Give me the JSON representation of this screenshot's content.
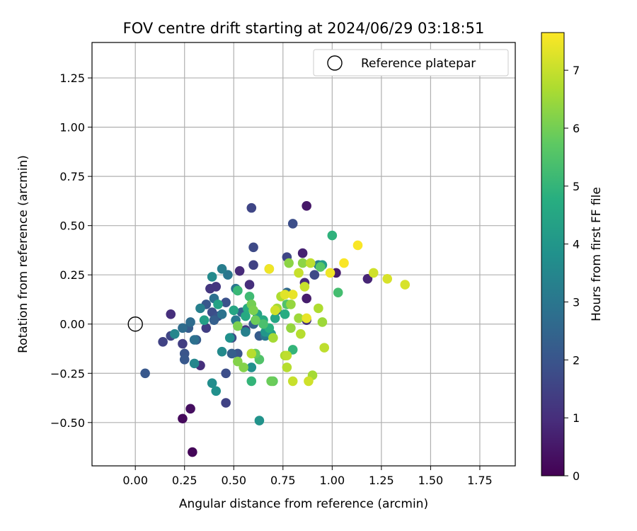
{
  "chart_data": {
    "type": "scatter",
    "title": "FOV centre drift starting at 2024/06/29 03:18:51",
    "xlabel": "Angular distance from reference (arcmin)",
    "ylabel": "Rotation from reference (arcmin)",
    "xlim": [
      -0.22,
      1.93
    ],
    "ylim": [
      -0.72,
      1.43
    ],
    "xticks": [
      "0.00",
      "0.25",
      "0.50",
      "0.75",
      "1.00",
      "1.25",
      "1.50",
      "1.75"
    ],
    "xtick_values": [
      0,
      0.25,
      0.5,
      0.75,
      1.0,
      1.25,
      1.5,
      1.75
    ],
    "yticks": [
      "−0.50",
      "−0.25",
      "0.00",
      "0.25",
      "0.50",
      "0.75",
      "1.00",
      "1.25"
    ],
    "ytick_values": [
      -0.5,
      -0.25,
      0,
      0.25,
      0.5,
      0.75,
      1.0,
      1.25
    ],
    "grid": true,
    "legend": {
      "position": "top-right",
      "entries": [
        {
          "label": "Reference platepar",
          "marker": "open-circle"
        }
      ]
    },
    "reference_point": {
      "x": 0,
      "y": 0,
      "label": "Reference platepar"
    },
    "colorbar": {
      "label": "Hours from first FF file",
      "range": [
        0,
        7.65
      ],
      "ticks": [
        "0",
        "1",
        "2",
        "3",
        "4",
        "5",
        "6",
        "7"
      ],
      "tick_values": [
        0,
        1,
        2,
        3,
        4,
        5,
        6,
        7
      ],
      "colormap": "viridis"
    },
    "points": [
      {
        "x": 0.29,
        "y": -0.65,
        "h": 0.1
      },
      {
        "x": 0.24,
        "y": -0.48,
        "h": 0.2
      },
      {
        "x": 0.28,
        "y": -0.43,
        "h": 0.3
      },
      {
        "x": 0.87,
        "y": 0.6,
        "h": 0.5
      },
      {
        "x": 0.85,
        "y": 0.36,
        "h": 0.7
      },
      {
        "x": 1.02,
        "y": 0.26,
        "h": 0.6
      },
      {
        "x": 1.18,
        "y": 0.23,
        "h": 0.8
      },
      {
        "x": 0.86,
        "y": 0.21,
        "h": 0.9
      },
      {
        "x": 0.87,
        "y": 0.13,
        "h": 0.6
      },
      {
        "x": 0.18,
        "y": 0.05,
        "h": 1.0
      },
      {
        "x": 0.33,
        "y": -0.21,
        "h": 1.0
      },
      {
        "x": 0.53,
        "y": 0.27,
        "h": 0.9
      },
      {
        "x": 0.58,
        "y": 0.2,
        "h": 1.0
      },
      {
        "x": 0.87,
        "y": 0.02,
        "h": 1.1
      },
      {
        "x": 0.38,
        "y": 0.18,
        "h": 1.2
      },
      {
        "x": 0.41,
        "y": 0.19,
        "h": 1.2
      },
      {
        "x": 0.56,
        "y": -0.03,
        "h": 1.3
      },
      {
        "x": 0.14,
        "y": -0.09,
        "h": 1.5
      },
      {
        "x": 0.18,
        "y": -0.06,
        "h": 1.6
      },
      {
        "x": 0.24,
        "y": -0.1,
        "h": 1.4
      },
      {
        "x": 0.36,
        "y": -0.02,
        "h": 1.4
      },
      {
        "x": 0.46,
        "y": -0.4,
        "h": 1.5
      },
      {
        "x": 0.59,
        "y": 0.59,
        "h": 1.6
      },
      {
        "x": 0.6,
        "y": 0.39,
        "h": 1.7
      },
      {
        "x": 0.6,
        "y": 0.3,
        "h": 1.5
      },
      {
        "x": 0.77,
        "y": 0.34,
        "h": 1.6
      },
      {
        "x": 0.8,
        "y": 0.51,
        "h": 1.8
      },
      {
        "x": 0.91,
        "y": 0.25,
        "h": 1.7
      },
      {
        "x": 0.39,
        "y": 0.06,
        "h": 1.8
      },
      {
        "x": 0.42,
        "y": 0.04,
        "h": 1.9
      },
      {
        "x": 0.46,
        "y": 0.11,
        "h": 1.9
      },
      {
        "x": 0.46,
        "y": -0.25,
        "h": 1.8
      },
      {
        "x": 0.49,
        "y": -0.07,
        "h": 1.7
      },
      {
        "x": 0.52,
        "y": -0.15,
        "h": 2.0
      },
      {
        "x": 0.25,
        "y": -0.15,
        "h": 2.0
      },
      {
        "x": 0.25,
        "y": -0.18,
        "h": 2.1
      },
      {
        "x": 0.05,
        "y": -0.25,
        "h": 2.1
      },
      {
        "x": 0.27,
        "y": -0.02,
        "h": 2.2
      },
      {
        "x": 0.31,
        "y": -0.08,
        "h": 2.2
      },
      {
        "x": 0.36,
        "y": 0.1,
        "h": 2.1
      },
      {
        "x": 0.4,
        "y": 0.02,
        "h": 2.3
      },
      {
        "x": 0.49,
        "y": -0.15,
        "h": 2.3
      },
      {
        "x": 0.54,
        "y": 0.06,
        "h": 2.4
      },
      {
        "x": 0.6,
        "y": 0.0,
        "h": 2.4
      },
      {
        "x": 0.63,
        "y": -0.06,
        "h": 2.2
      },
      {
        "x": 0.72,
        "y": 0.07,
        "h": 2.5
      },
      {
        "x": 0.77,
        "y": 0.16,
        "h": 2.6
      },
      {
        "x": 0.24,
        "y": -0.02,
        "h": 2.7
      },
      {
        "x": 0.28,
        "y": 0.01,
        "h": 2.7
      },
      {
        "x": 0.3,
        "y": -0.08,
        "h": 2.8
      },
      {
        "x": 0.4,
        "y": 0.13,
        "h": 2.8
      },
      {
        "x": 0.44,
        "y": 0.05,
        "h": 2.9
      },
      {
        "x": 0.47,
        "y": 0.25,
        "h": 3.0
      },
      {
        "x": 0.51,
        "y": 0.18,
        "h": 3.0
      },
      {
        "x": 0.44,
        "y": 0.28,
        "h": 3.2
      },
      {
        "x": 0.33,
        "y": 0.08,
        "h": 3.3
      },
      {
        "x": 0.51,
        "y": 0.02,
        "h": 3.1
      },
      {
        "x": 0.56,
        "y": -0.04,
        "h": 3.3
      },
      {
        "x": 0.66,
        "y": -0.06,
        "h": 3.1
      },
      {
        "x": 0.93,
        "y": 0.3,
        "h": 3.2
      },
      {
        "x": 0.2,
        "y": -0.05,
        "h": 3.5
      },
      {
        "x": 0.3,
        "y": -0.2,
        "h": 3.5
      },
      {
        "x": 0.39,
        "y": 0.24,
        "h": 3.6
      },
      {
        "x": 0.39,
        "y": -0.3,
        "h": 3.7
      },
      {
        "x": 0.41,
        "y": -0.34,
        "h": 3.8
      },
      {
        "x": 0.44,
        "y": -0.14,
        "h": 3.6
      },
      {
        "x": 0.48,
        "y": -0.07,
        "h": 3.8
      },
      {
        "x": 0.52,
        "y": 0.17,
        "h": 3.9
      },
      {
        "x": 0.63,
        "y": -0.49,
        "h": 3.9
      },
      {
        "x": 0.59,
        "y": -0.22,
        "h": 3.8
      },
      {
        "x": 0.66,
        "y": -0.04,
        "h": 4.0
      },
      {
        "x": 0.69,
        "y": -0.05,
        "h": 4.1
      },
      {
        "x": 0.95,
        "y": 0.3,
        "h": 4.2
      },
      {
        "x": 0.35,
        "y": 0.02,
        "h": 4.3
      },
      {
        "x": 0.42,
        "y": 0.1,
        "h": 4.4
      },
      {
        "x": 0.5,
        "y": 0.07,
        "h": 4.5
      },
      {
        "x": 0.56,
        "y": 0.04,
        "h": 4.6
      },
      {
        "x": 0.57,
        "y": 0.08,
        "h": 4.7
      },
      {
        "x": 0.62,
        "y": 0.05,
        "h": 4.4
      },
      {
        "x": 0.65,
        "y": 0.02,
        "h": 4.6
      },
      {
        "x": 0.68,
        "y": -0.02,
        "h": 4.8
      },
      {
        "x": 0.71,
        "y": 0.03,
        "h": 4.5
      },
      {
        "x": 0.76,
        "y": 0.05,
        "h": 4.7
      },
      {
        "x": 1.0,
        "y": 0.45,
        "h": 4.9
      },
      {
        "x": 0.8,
        "y": -0.13,
        "h": 5.0
      },
      {
        "x": 0.52,
        "y": 0.17,
        "h": 5.1
      },
      {
        "x": 0.58,
        "y": 0.14,
        "h": 5.2
      },
      {
        "x": 0.59,
        "y": -0.29,
        "h": 5.0
      },
      {
        "x": 1.03,
        "y": 0.16,
        "h": 5.3
      },
      {
        "x": 0.65,
        "y": 0.0,
        "h": 5.4
      },
      {
        "x": 0.63,
        "y": -0.18,
        "h": 5.5
      },
      {
        "x": 0.77,
        "y": 0.1,
        "h": 5.5
      },
      {
        "x": 0.94,
        "y": 0.29,
        "h": 5.6
      },
      {
        "x": 0.68,
        "y": 0.28,
        "h": 5.7
      },
      {
        "x": 0.7,
        "y": -0.29,
        "h": 5.8
      },
      {
        "x": 0.69,
        "y": -0.29,
        "h": 5.9
      },
      {
        "x": 0.61,
        "y": -0.15,
        "h": 5.8
      },
      {
        "x": 0.61,
        "y": 0.02,
        "h": 5.9
      },
      {
        "x": 0.59,
        "y": 0.1,
        "h": 6.0
      },
      {
        "x": 0.6,
        "y": 0.07,
        "h": 6.1
      },
      {
        "x": 0.55,
        "y": -0.22,
        "h": 6.2
      },
      {
        "x": 0.52,
        "y": -0.19,
        "h": 6.2
      },
      {
        "x": 0.52,
        "y": -0.01,
        "h": 6.1
      },
      {
        "x": 0.78,
        "y": 0.31,
        "h": 6.3
      },
      {
        "x": 0.79,
        "y": 0.1,
        "h": 6.4
      },
      {
        "x": 0.79,
        "y": -0.02,
        "h": 6.4
      },
      {
        "x": 0.83,
        "y": 0.03,
        "h": 6.5
      },
      {
        "x": 0.85,
        "y": 0.31,
        "h": 6.3
      },
      {
        "x": 0.72,
        "y": 0.08,
        "h": 6.6
      },
      {
        "x": 0.7,
        "y": -0.07,
        "h": 6.6
      },
      {
        "x": 0.74,
        "y": 0.14,
        "h": 6.7
      },
      {
        "x": 0.76,
        "y": -0.16,
        "h": 6.7
      },
      {
        "x": 0.77,
        "y": -0.22,
        "h": 6.8
      },
      {
        "x": 0.84,
        "y": -0.05,
        "h": 6.8
      },
      {
        "x": 0.89,
        "y": 0.31,
        "h": 6.9
      },
      {
        "x": 0.9,
        "y": -0.26,
        "h": 6.6
      },
      {
        "x": 0.93,
        "y": 0.08,
        "h": 6.7
      },
      {
        "x": 0.95,
        "y": 0.01,
        "h": 6.5
      },
      {
        "x": 0.96,
        "y": -0.12,
        "h": 6.9
      },
      {
        "x": 0.59,
        "y": -0.15,
        "h": 6.8
      },
      {
        "x": 0.77,
        "y": -0.16,
        "h": 6.9
      },
      {
        "x": 0.8,
        "y": -0.29,
        "h": 7.0
      },
      {
        "x": 0.83,
        "y": 0.26,
        "h": 7.0
      },
      {
        "x": 0.86,
        "y": 0.19,
        "h": 7.0
      },
      {
        "x": 0.88,
        "y": -0.29,
        "h": 7.1
      },
      {
        "x": 1.21,
        "y": 0.26,
        "h": 7.1
      },
      {
        "x": 1.28,
        "y": 0.23,
        "h": 7.2
      },
      {
        "x": 1.37,
        "y": 0.2,
        "h": 7.2
      },
      {
        "x": 0.71,
        "y": 0.07,
        "h": 7.1
      },
      {
        "x": 0.76,
        "y": 0.15,
        "h": 7.3
      },
      {
        "x": 0.8,
        "y": 0.15,
        "h": 7.4
      },
      {
        "x": 0.87,
        "y": 0.03,
        "h": 7.4
      },
      {
        "x": 0.68,
        "y": 0.28,
        "h": 7.5
      },
      {
        "x": 0.99,
        "y": 0.26,
        "h": 7.5
      },
      {
        "x": 1.06,
        "y": 0.31,
        "h": 7.6
      },
      {
        "x": 1.13,
        "y": 0.4,
        "h": 7.6
      }
    ]
  }
}
